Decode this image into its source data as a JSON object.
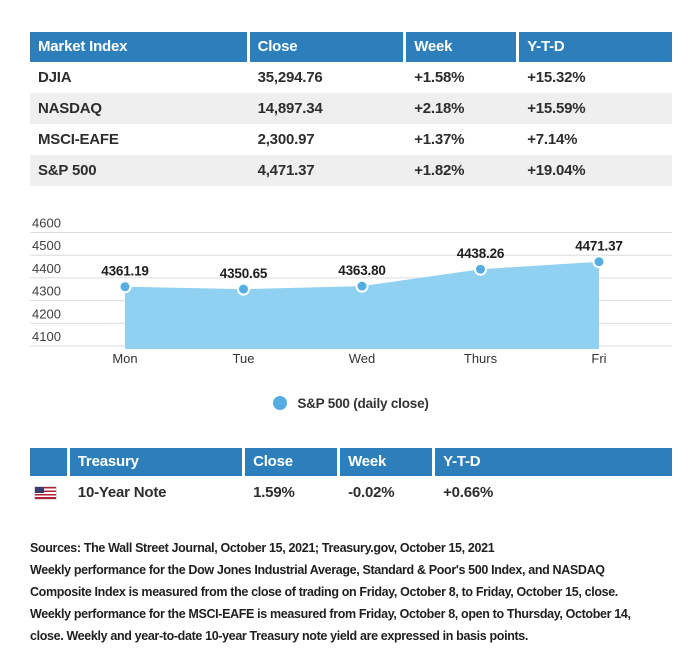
{
  "colors": {
    "header_blue": "#2c7fba",
    "row_stripe": "#efefef",
    "area_fill": "#90d0f0",
    "marker": "#55ade1",
    "gridline": "#dcdcdc",
    "tick_text": "#3f3f3f",
    "point_label_text": "#1e1e1e"
  },
  "market_table": {
    "headers": [
      "Market Index",
      "Close",
      "Week",
      "Y-T-D"
    ],
    "rows": [
      {
        "name": "DJIA",
        "close": "35,294.76",
        "week": "+1.58%",
        "ytd": "+15.32%"
      },
      {
        "name": "NASDAQ",
        "close": "14,897.34",
        "week": "+2.18%",
        "ytd": "+15.59%"
      },
      {
        "name": "MSCI-EAFE",
        "close": "2,300.97",
        "week": "+1.37%",
        "ytd": "+7.14%"
      },
      {
        "name": "S&P 500",
        "close": "4,471.37",
        "week": "+1.82%",
        "ytd": "+19.04%"
      }
    ]
  },
  "chart_data": {
    "type": "area",
    "title": "",
    "x": [
      "Mon",
      "Tue",
      "Wed",
      "Thurs",
      "Fri"
    ],
    "series": [
      {
        "name": "S&P 500 (daily close)",
        "values": [
          4361.19,
          4350.65,
          4363.8,
          4438.26,
          4471.37
        ]
      }
    ],
    "point_labels": [
      "4361.19",
      "4350.65",
      "4363.80",
      "4438.26",
      "4471.37"
    ],
    "yticks": [
      4600,
      4500,
      4400,
      4300,
      4200,
      4100
    ],
    "ylim": [
      4100,
      4600
    ],
    "grid": true,
    "legend_position": "bottom"
  },
  "legend": {
    "label": "S&P 500 (daily close)"
  },
  "treasury_table": {
    "headers": [
      "",
      "Treasury",
      "Close",
      "Week",
      "Y-T-D"
    ],
    "rows": [
      {
        "flag": "us-flag",
        "name": "10-Year Note",
        "close": "1.59%",
        "week": "-0.02%",
        "ytd": "+0.66%"
      }
    ]
  },
  "footnotes": {
    "sources_line": "Sources: The Wall Street Journal, October 15, 2021; Treasury.gov, October 15, 2021",
    "note_lines": [
      "Weekly performance for the Dow Jones Industrial Average, Standard & Poor's 500 Index, and NASDAQ",
      "Composite Index is measured from the close of trading on Friday, October 8, to Friday, October 15, close.",
      "Weekly performance for the MSCI-EAFE is measured from Friday, October 8, open to Thursday, October 14,",
      "close. Weekly and year-to-date 10-year Treasury note yield are expressed in basis points."
    ]
  }
}
